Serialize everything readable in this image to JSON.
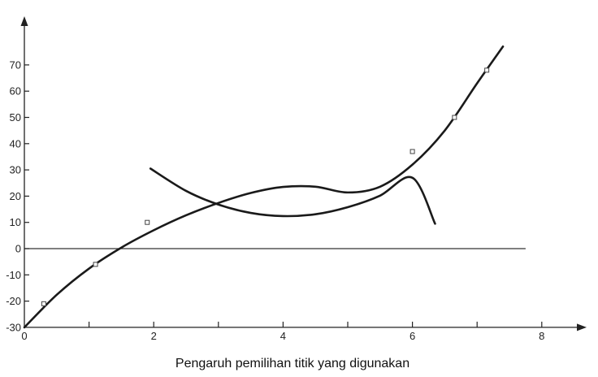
{
  "chart_data": {
    "type": "line",
    "title": "",
    "caption": "Pengaruh pemilihan titik yang digunakan",
    "xlabel": "",
    "ylabel": "",
    "xlim": [
      0,
      8.5
    ],
    "ylim": [
      -30,
      80
    ],
    "x_ticks": [
      0,
      1,
      2,
      3,
      4,
      5,
      6,
      7,
      8
    ],
    "x_tick_labels": [
      "0",
      "",
      "2",
      "",
      "4",
      "",
      "6",
      "",
      "8"
    ],
    "y_ticks": [
      -30,
      -20,
      -10,
      0,
      10,
      20,
      30,
      40,
      50,
      60,
      70
    ],
    "y_tick_labels": [
      "-30",
      "-20",
      "-10",
      "0",
      "10",
      "20",
      "30",
      "40",
      "50",
      "60",
      "70"
    ],
    "grid": false,
    "zero_line": {
      "y": 0,
      "x_end": 7.75
    },
    "series": [
      {
        "style": "line",
        "x": [
          0,
          0.5,
          1,
          1.5,
          2,
          2.5,
          3,
          3.5,
          4,
          4.5,
          5,
          5.5,
          6,
          6.5,
          7,
          7.4
        ],
        "y": [
          -30,
          -17.6,
          -7.6,
          0.4,
          7,
          12.7,
          17.4,
          21.2,
          23.5,
          23.6,
          21.4,
          23.6,
          32,
          45,
          63,
          77
        ]
      },
      {
        "style": "line",
        "x": [
          1.95,
          2.5,
          3,
          3.5,
          4,
          4.5,
          5,
          5.5,
          6,
          6.35
        ],
        "y": [
          30.5,
          22,
          16.8,
          13.6,
          12.4,
          13.1,
          15.8,
          20.2,
          27,
          9.5
        ]
      },
      {
        "style": "markers",
        "x": [
          0.3,
          1.1,
          1.9,
          6.0,
          6.65,
          7.15
        ],
        "y": [
          -21,
          -6,
          10,
          37,
          50,
          68
        ]
      }
    ]
  }
}
